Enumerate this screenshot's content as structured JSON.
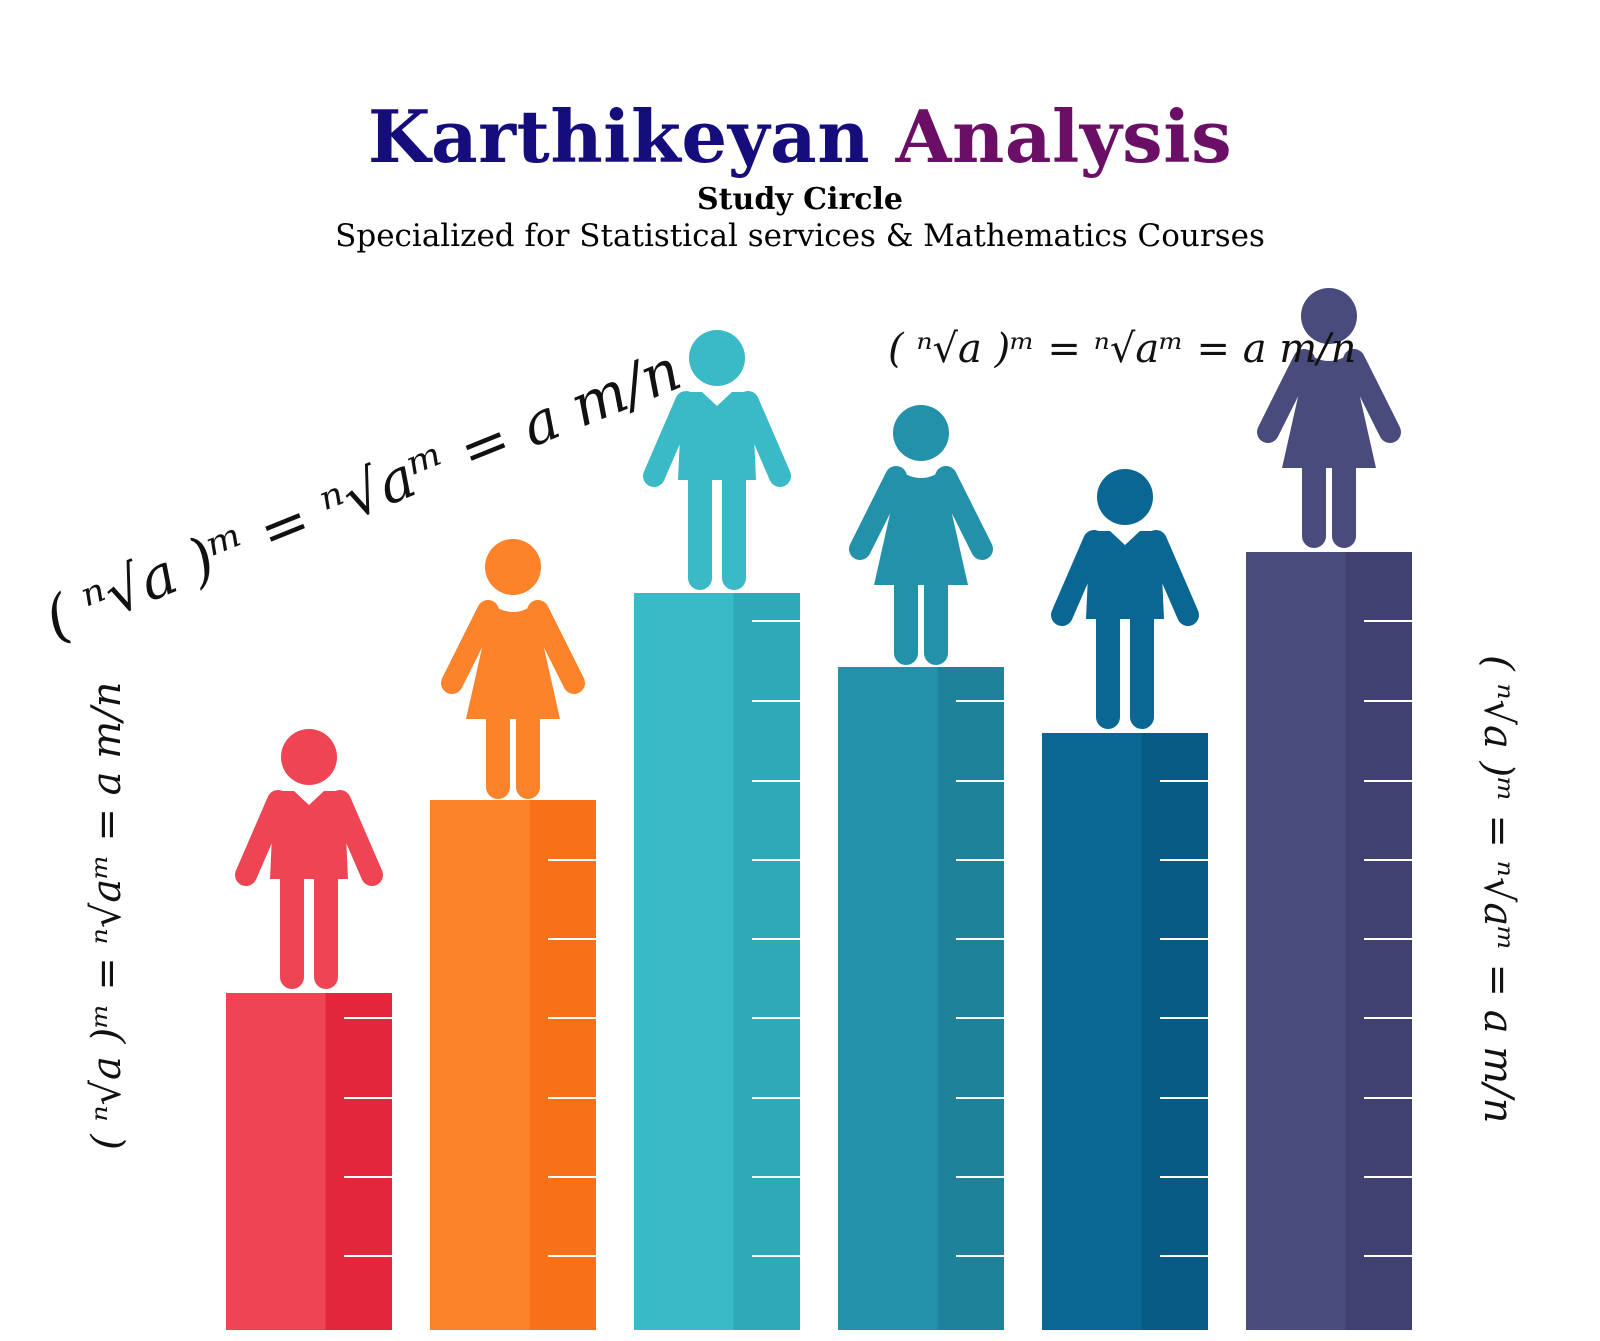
{
  "header": {
    "title_part1": "Karthikeyan",
    "title_part2": "Analysis",
    "subtitle": "Study Circle",
    "tagline": "Specialized for Statistical services & Mathematics Courses"
  },
  "colors": {
    "title_part1": "#160d7c",
    "title_part2": "#6a0e66"
  },
  "bars": [
    {
      "color": "#ef4454",
      "shade": "#e2263b",
      "figure": "man"
    },
    {
      "color": "#fd832a",
      "shade": "#f87017",
      "figure": "woman"
    },
    {
      "color": "#3ab9c6",
      "shade": "#2eaab7",
      "figure": "man"
    },
    {
      "color": "#2491aa",
      "shade": "#1e829b",
      "figure": "woman"
    },
    {
      "color": "#0a6693",
      "shade": "#065a84",
      "figure": "man"
    },
    {
      "color": "#4a4b7d",
      "shade": "#414171",
      "figure": "woman"
    }
  ],
  "formula": {
    "text": "( ⁿ√a )ᵐ = ⁿ√aᵐ = a m/n"
  }
}
